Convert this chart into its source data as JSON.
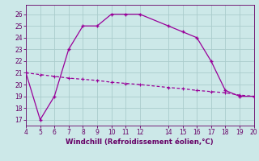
{
  "xlabel": "Windchill (Refroidissement éolien,°C)",
  "line1_x": [
    4,
    5,
    6,
    7,
    8,
    9,
    10,
    11,
    12,
    14,
    15,
    16,
    17,
    18,
    19,
    20
  ],
  "line1_y": [
    21,
    17,
    19,
    23,
    25,
    25,
    26,
    26,
    26,
    25,
    24.5,
    24,
    22,
    19.5,
    19,
    19
  ],
  "line2_x": [
    4,
    5,
    6,
    7,
    8,
    9,
    10,
    11,
    12,
    14,
    15,
    16,
    17,
    18,
    19,
    20
  ],
  "line2_y": [
    21,
    20.85,
    20.7,
    20.55,
    20.45,
    20.35,
    20.2,
    20.1,
    20.0,
    19.75,
    19.65,
    19.5,
    19.4,
    19.3,
    19.1,
    19.0
  ],
  "line_color": "#990099",
  "bg_color": "#cce8e8",
  "grid_color": "#aacccc",
  "xlim": [
    4,
    20
  ],
  "ylim": [
    16.5,
    26.8
  ],
  "yticks": [
    17,
    18,
    19,
    20,
    21,
    22,
    23,
    24,
    25,
    26
  ],
  "xticks": [
    4,
    5,
    6,
    7,
    8,
    9,
    10,
    11,
    12,
    14,
    15,
    16,
    17,
    18,
    19,
    20
  ],
  "tick_color": "#660066",
  "label_color": "#660066"
}
